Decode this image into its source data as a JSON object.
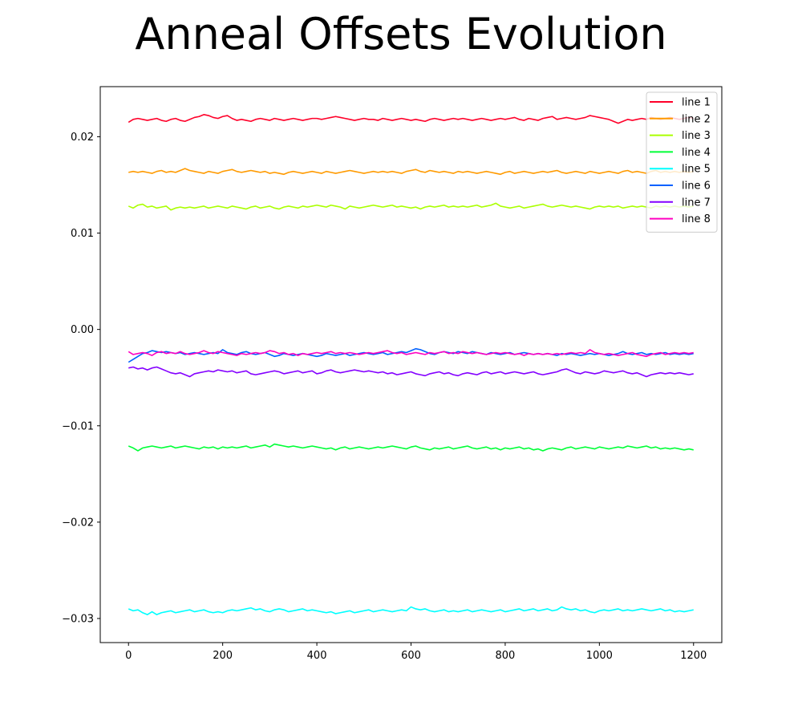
{
  "chart_data": {
    "type": "line",
    "title": "Anneal Offsets Evolution",
    "xlabel": "",
    "ylabel": "",
    "xlim": [
      -60,
      1260
    ],
    "ylim": [
      -0.0325,
      0.0252
    ],
    "x_ticks": [
      0,
      200,
      400,
      600,
      800,
      1000,
      1200
    ],
    "x_tick_labels": [
      "0",
      "200",
      "400",
      "600",
      "800",
      "1000",
      "1200"
    ],
    "y_ticks": [
      0.02,
      0.01,
      0.0,
      -0.01,
      -0.02,
      -0.03
    ],
    "y_tick_labels": [
      "0.02",
      "0.01",
      "0.00",
      "−0.01",
      "−0.02",
      "−0.03"
    ],
    "legend_position": "top-right",
    "grid": false,
    "x_range": [
      0,
      1200
    ],
    "point_step": 10,
    "series": [
      {
        "name": "line 1",
        "color": "#ff0029",
        "values": [
          0.0215,
          0.0218,
          0.0219,
          0.0218,
          0.0217,
          0.0218,
          0.0219,
          0.0217,
          0.0216,
          0.0218,
          0.0219,
          0.0217,
          0.0216,
          0.0218,
          0.022,
          0.0221,
          0.0223,
          0.0222,
          0.022,
          0.0219,
          0.0221,
          0.0222,
          0.0219,
          0.0217,
          0.0218,
          0.0217,
          0.0216,
          0.0218,
          0.0219,
          0.0218,
          0.0217,
          0.0219,
          0.0218,
          0.0217,
          0.0218,
          0.0219,
          0.0218,
          0.0217,
          0.0218,
          0.0219,
          0.0219,
          0.0218,
          0.0219,
          0.022,
          0.0221,
          0.022,
          0.0219,
          0.0218,
          0.0217,
          0.0218,
          0.0219,
          0.0218,
          0.0218,
          0.0217,
          0.0219,
          0.0218,
          0.0217,
          0.0218,
          0.0219,
          0.0218,
          0.0217,
          0.0218,
          0.0217,
          0.0216,
          0.0218,
          0.0219,
          0.0218,
          0.0217,
          0.0218,
          0.0219,
          0.0218,
          0.0219,
          0.0218,
          0.0217,
          0.0218,
          0.0219,
          0.0218,
          0.0217,
          0.0218,
          0.0219,
          0.0218,
          0.0219,
          0.022,
          0.0218,
          0.0217,
          0.0219,
          0.0218,
          0.0217,
          0.0219,
          0.022,
          0.0221,
          0.0218,
          0.0219,
          0.022,
          0.0219,
          0.0218,
          0.0219,
          0.022,
          0.0222,
          0.0221,
          0.022,
          0.0219,
          0.0218,
          0.0216,
          0.0214,
          0.0216,
          0.0218,
          0.0217,
          0.0218,
          0.0219,
          0.0218,
          0.022,
          0.0219,
          0.0218,
          0.0219,
          0.022,
          0.0219,
          0.0218,
          0.0219,
          0.022,
          0.0219
        ]
      },
      {
        "name": "line 2",
        "color": "#ff9a00",
        "values": [
          0.0163,
          0.0164,
          0.0163,
          0.0164,
          0.0163,
          0.0162,
          0.0164,
          0.0165,
          0.0163,
          0.0164,
          0.0163,
          0.0165,
          0.0167,
          0.0165,
          0.0164,
          0.0163,
          0.0162,
          0.0164,
          0.0163,
          0.0162,
          0.0164,
          0.0165,
          0.0166,
          0.0164,
          0.0163,
          0.0164,
          0.0165,
          0.0164,
          0.0163,
          0.0164,
          0.0162,
          0.0163,
          0.0162,
          0.0161,
          0.0163,
          0.0164,
          0.0163,
          0.0162,
          0.0163,
          0.0164,
          0.0163,
          0.0162,
          0.0164,
          0.0163,
          0.0162,
          0.0163,
          0.0164,
          0.0165,
          0.0164,
          0.0163,
          0.0162,
          0.0163,
          0.0164,
          0.0163,
          0.0164,
          0.0163,
          0.0164,
          0.0163,
          0.0162,
          0.0164,
          0.0165,
          0.0166,
          0.0164,
          0.0163,
          0.0165,
          0.0164,
          0.0163,
          0.0164,
          0.0163,
          0.0162,
          0.0164,
          0.0163,
          0.0164,
          0.0163,
          0.0162,
          0.0163,
          0.0164,
          0.0163,
          0.0162,
          0.0161,
          0.0163,
          0.0164,
          0.0162,
          0.0163,
          0.0164,
          0.0163,
          0.0162,
          0.0163,
          0.0164,
          0.0163,
          0.0164,
          0.0165,
          0.0163,
          0.0162,
          0.0163,
          0.0164,
          0.0163,
          0.0162,
          0.0164,
          0.0163,
          0.0162,
          0.0163,
          0.0164,
          0.0163,
          0.0162,
          0.0164,
          0.0165,
          0.0163,
          0.0164,
          0.0163,
          0.0162,
          0.0164,
          0.0165,
          0.0163,
          0.0164,
          0.0163,
          0.0164,
          0.0163,
          0.0164,
          0.0163,
          0.0164
        ]
      },
      {
        "name": "line 3",
        "color": "#aaff00",
        "values": [
          0.0128,
          0.0126,
          0.0129,
          0.013,
          0.0127,
          0.0128,
          0.0126,
          0.0127,
          0.0128,
          0.0124,
          0.0126,
          0.0127,
          0.0126,
          0.0127,
          0.0126,
          0.0127,
          0.0128,
          0.0126,
          0.0127,
          0.0128,
          0.0127,
          0.0126,
          0.0128,
          0.0127,
          0.0126,
          0.0125,
          0.0127,
          0.0128,
          0.0126,
          0.0127,
          0.0128,
          0.0126,
          0.0125,
          0.0127,
          0.0128,
          0.0127,
          0.0126,
          0.0128,
          0.0127,
          0.0128,
          0.0129,
          0.0128,
          0.0127,
          0.0129,
          0.0128,
          0.0127,
          0.0125,
          0.0128,
          0.0127,
          0.0126,
          0.0127,
          0.0128,
          0.0129,
          0.0128,
          0.0127,
          0.0128,
          0.0129,
          0.0127,
          0.0128,
          0.0127,
          0.0126,
          0.0127,
          0.0125,
          0.0127,
          0.0128,
          0.0127,
          0.0128,
          0.0129,
          0.0127,
          0.0128,
          0.0127,
          0.0128,
          0.0127,
          0.0128,
          0.0129,
          0.0127,
          0.0128,
          0.0129,
          0.0131,
          0.0128,
          0.0127,
          0.0126,
          0.0127,
          0.0128,
          0.0126,
          0.0127,
          0.0128,
          0.0129,
          0.013,
          0.0128,
          0.0127,
          0.0128,
          0.0129,
          0.0128,
          0.0127,
          0.0128,
          0.0127,
          0.0126,
          0.0125,
          0.0127,
          0.0128,
          0.0127,
          0.0128,
          0.0127,
          0.0128,
          0.0126,
          0.0127,
          0.0128,
          0.0127,
          0.0128,
          0.0127,
          0.0126,
          0.0128,
          0.0127,
          0.0128,
          0.0127,
          0.0128,
          0.0127,
          0.0128,
          0.0127,
          0.0128
        ]
      },
      {
        "name": "line 4",
        "color": "#00ff37",
        "values": [
          -0.0121,
          -0.0123,
          -0.0126,
          -0.0123,
          -0.0122,
          -0.0121,
          -0.0122,
          -0.0123,
          -0.0122,
          -0.0121,
          -0.0123,
          -0.0122,
          -0.0121,
          -0.0122,
          -0.0123,
          -0.0124,
          -0.0122,
          -0.0123,
          -0.0122,
          -0.0124,
          -0.0122,
          -0.0123,
          -0.0122,
          -0.0123,
          -0.0122,
          -0.0121,
          -0.0123,
          -0.0122,
          -0.0121,
          -0.012,
          -0.0122,
          -0.0119,
          -0.012,
          -0.0121,
          -0.0122,
          -0.0121,
          -0.0122,
          -0.0123,
          -0.0122,
          -0.0121,
          -0.0122,
          -0.0123,
          -0.0124,
          -0.0123,
          -0.0125,
          -0.0123,
          -0.0122,
          -0.0124,
          -0.0123,
          -0.0122,
          -0.0123,
          -0.0124,
          -0.0123,
          -0.0122,
          -0.0123,
          -0.0122,
          -0.0121,
          -0.0122,
          -0.0123,
          -0.0124,
          -0.0122,
          -0.0121,
          -0.0123,
          -0.0124,
          -0.0125,
          -0.0123,
          -0.0124,
          -0.0123,
          -0.0122,
          -0.0124,
          -0.0123,
          -0.0122,
          -0.0121,
          -0.0123,
          -0.0124,
          -0.0123,
          -0.0122,
          -0.0124,
          -0.0123,
          -0.0125,
          -0.0123,
          -0.0124,
          -0.0123,
          -0.0122,
          -0.0124,
          -0.0123,
          -0.0125,
          -0.0124,
          -0.0126,
          -0.0124,
          -0.0123,
          -0.0124,
          -0.0125,
          -0.0123,
          -0.0122,
          -0.0124,
          -0.0123,
          -0.0122,
          -0.0123,
          -0.0124,
          -0.0122,
          -0.0123,
          -0.0124,
          -0.0123,
          -0.0122,
          -0.0123,
          -0.0121,
          -0.0122,
          -0.0123,
          -0.0122,
          -0.0121,
          -0.0123,
          -0.0122,
          -0.0124,
          -0.0123,
          -0.0124,
          -0.0123,
          -0.0124,
          -0.0125,
          -0.0124,
          -0.0125
        ]
      },
      {
        "name": "line 5",
        "color": "#00ffff",
        "values": [
          -0.029,
          -0.0292,
          -0.0291,
          -0.0294,
          -0.0296,
          -0.0293,
          -0.0296,
          -0.0294,
          -0.0293,
          -0.0292,
          -0.0294,
          -0.0293,
          -0.0292,
          -0.0291,
          -0.0293,
          -0.0292,
          -0.0291,
          -0.0293,
          -0.0294,
          -0.0293,
          -0.0294,
          -0.0292,
          -0.0291,
          -0.0292,
          -0.0291,
          -0.029,
          -0.0289,
          -0.0291,
          -0.029,
          -0.0292,
          -0.0293,
          -0.0291,
          -0.029,
          -0.0291,
          -0.0293,
          -0.0292,
          -0.0291,
          -0.029,
          -0.0292,
          -0.0291,
          -0.0292,
          -0.0293,
          -0.0294,
          -0.0293,
          -0.0295,
          -0.0294,
          -0.0293,
          -0.0292,
          -0.0294,
          -0.0293,
          -0.0292,
          -0.0291,
          -0.0293,
          -0.0292,
          -0.0291,
          -0.0292,
          -0.0293,
          -0.0292,
          -0.0291,
          -0.0292,
          -0.0288,
          -0.029,
          -0.0291,
          -0.029,
          -0.0292,
          -0.0293,
          -0.0292,
          -0.0291,
          -0.0293,
          -0.0292,
          -0.0293,
          -0.0292,
          -0.0291,
          -0.0293,
          -0.0292,
          -0.0291,
          -0.0292,
          -0.0293,
          -0.0292,
          -0.0291,
          -0.0293,
          -0.0292,
          -0.0291,
          -0.029,
          -0.0292,
          -0.0291,
          -0.029,
          -0.0292,
          -0.0291,
          -0.029,
          -0.0292,
          -0.0291,
          -0.0288,
          -0.029,
          -0.0291,
          -0.029,
          -0.0292,
          -0.0291,
          -0.0293,
          -0.0294,
          -0.0292,
          -0.0291,
          -0.0292,
          -0.0291,
          -0.029,
          -0.0292,
          -0.0291,
          -0.0292,
          -0.0291,
          -0.029,
          -0.0291,
          -0.0292,
          -0.0291,
          -0.029,
          -0.0292,
          -0.0291,
          -0.0293,
          -0.0292,
          -0.0293,
          -0.0292,
          -0.0291
        ]
      },
      {
        "name": "line 6",
        "color": "#0061ff",
        "values": [
          -0.0034,
          -0.0031,
          -0.0028,
          -0.0025,
          -0.0024,
          -0.0022,
          -0.0023,
          -0.0024,
          -0.0023,
          -0.0024,
          -0.0025,
          -0.0024,
          -0.0026,
          -0.0025,
          -0.0024,
          -0.0025,
          -0.0026,
          -0.0025,
          -0.0024,
          -0.0025,
          -0.0021,
          -0.0024,
          -0.0025,
          -0.0026,
          -0.0024,
          -0.0023,
          -0.0025,
          -0.0026,
          -0.0025,
          -0.0024,
          -0.0026,
          -0.0028,
          -0.0027,
          -0.0025,
          -0.0026,
          -0.0027,
          -0.0026,
          -0.0025,
          -0.0026,
          -0.0027,
          -0.0028,
          -0.0027,
          -0.0025,
          -0.0026,
          -0.0027,
          -0.0026,
          -0.0025,
          -0.0027,
          -0.0026,
          -0.0025,
          -0.0024,
          -0.0025,
          -0.0026,
          -0.0025,
          -0.0024,
          -0.0026,
          -0.0025,
          -0.0024,
          -0.0023,
          -0.0024,
          -0.0022,
          -0.002,
          -0.0021,
          -0.0023,
          -0.0025,
          -0.0026,
          -0.0024,
          -0.0023,
          -0.0024,
          -0.0025,
          -0.0023,
          -0.0024,
          -0.0025,
          -0.0023,
          -0.0024,
          -0.0025,
          -0.0026,
          -0.0024,
          -0.0025,
          -0.0026,
          -0.0025,
          -0.0024,
          -0.0026,
          -0.0025,
          -0.0024,
          -0.0025,
          -0.0026,
          -0.0025,
          -0.0026,
          -0.0025,
          -0.0026,
          -0.0027,
          -0.0025,
          -0.0026,
          -0.0025,
          -0.0026,
          -0.0027,
          -0.0026,
          -0.0025,
          -0.0026,
          -0.0025,
          -0.0026,
          -0.0027,
          -0.0026,
          -0.0025,
          -0.0023,
          -0.0025,
          -0.0026,
          -0.0025,
          -0.0024,
          -0.0026,
          -0.0025,
          -0.0026,
          -0.0025,
          -0.0024,
          -0.0026,
          -0.0025,
          -0.0026,
          -0.0025,
          -0.0026,
          -0.0025
        ]
      },
      {
        "name": "line 7",
        "color": "#8400ff",
        "values": [
          -0.004,
          -0.0039,
          -0.0041,
          -0.004,
          -0.0042,
          -0.004,
          -0.0039,
          -0.0041,
          -0.0043,
          -0.0045,
          -0.0046,
          -0.0045,
          -0.0047,
          -0.0049,
          -0.0046,
          -0.0045,
          -0.0044,
          -0.0043,
          -0.0044,
          -0.0042,
          -0.0043,
          -0.0044,
          -0.0043,
          -0.0045,
          -0.0044,
          -0.0043,
          -0.0046,
          -0.0047,
          -0.0046,
          -0.0045,
          -0.0044,
          -0.0043,
          -0.0044,
          -0.0046,
          -0.0045,
          -0.0044,
          -0.0043,
          -0.0045,
          -0.0044,
          -0.0043,
          -0.0046,
          -0.0045,
          -0.0043,
          -0.0042,
          -0.0044,
          -0.0045,
          -0.0044,
          -0.0043,
          -0.0042,
          -0.0043,
          -0.0044,
          -0.0043,
          -0.0044,
          -0.0045,
          -0.0044,
          -0.0046,
          -0.0045,
          -0.0047,
          -0.0046,
          -0.0045,
          -0.0044,
          -0.0046,
          -0.0047,
          -0.0048,
          -0.0046,
          -0.0045,
          -0.0044,
          -0.0046,
          -0.0045,
          -0.0047,
          -0.0048,
          -0.0046,
          -0.0045,
          -0.0046,
          -0.0047,
          -0.0045,
          -0.0044,
          -0.0046,
          -0.0045,
          -0.0044,
          -0.0046,
          -0.0045,
          -0.0044,
          -0.0045,
          -0.0046,
          -0.0045,
          -0.0044,
          -0.0046,
          -0.0047,
          -0.0046,
          -0.0045,
          -0.0044,
          -0.0042,
          -0.0041,
          -0.0043,
          -0.0045,
          -0.0046,
          -0.0044,
          -0.0045,
          -0.0046,
          -0.0045,
          -0.0043,
          -0.0044,
          -0.0045,
          -0.0044,
          -0.0043,
          -0.0045,
          -0.0046,
          -0.0045,
          -0.0047,
          -0.0049,
          -0.0047,
          -0.0046,
          -0.0045,
          -0.0046,
          -0.0045,
          -0.0046,
          -0.0045,
          -0.0046,
          -0.0047,
          -0.0046
        ]
      },
      {
        "name": "line 8",
        "color": "#ff00c1",
        "values": [
          -0.0023,
          -0.0026,
          -0.0025,
          -0.0024,
          -0.0025,
          -0.0027,
          -0.0024,
          -0.0023,
          -0.0025,
          -0.0024,
          -0.0025,
          -0.0023,
          -0.0025,
          -0.0026,
          -0.0025,
          -0.0024,
          -0.0022,
          -0.0024,
          -0.0025,
          -0.0023,
          -0.0024,
          -0.0025,
          -0.0026,
          -0.0027,
          -0.0025,
          -0.0026,
          -0.0025,
          -0.0024,
          -0.0025,
          -0.0024,
          -0.0022,
          -0.0023,
          -0.0025,
          -0.0024,
          -0.0026,
          -0.0025,
          -0.0027,
          -0.0025,
          -0.0026,
          -0.0025,
          -0.0024,
          -0.0025,
          -0.0024,
          -0.0023,
          -0.0025,
          -0.0024,
          -0.0025,
          -0.0024,
          -0.0025,
          -0.0026,
          -0.0025,
          -0.0024,
          -0.0025,
          -0.0024,
          -0.0023,
          -0.0022,
          -0.0024,
          -0.0025,
          -0.0024,
          -0.0026,
          -0.0025,
          -0.0024,
          -0.0025,
          -0.0026,
          -0.0024,
          -0.0025,
          -0.0024,
          -0.0023,
          -0.0025,
          -0.0024,
          -0.0025,
          -0.0023,
          -0.0024,
          -0.0025,
          -0.0024,
          -0.0025,
          -0.0026,
          -0.0025,
          -0.0024,
          -0.0025,
          -0.0024,
          -0.0025,
          -0.0026,
          -0.0025,
          -0.0027,
          -0.0025,
          -0.0026,
          -0.0025,
          -0.0026,
          -0.0025,
          -0.0026,
          -0.0025,
          -0.0026,
          -0.0025,
          -0.0024,
          -0.0025,
          -0.0024,
          -0.0025,
          -0.0021,
          -0.0024,
          -0.0025,
          -0.0026,
          -0.0025,
          -0.0026,
          -0.0027,
          -0.0026,
          -0.0025,
          -0.0024,
          -0.0026,
          -0.0027,
          -0.0028,
          -0.0026,
          -0.0025,
          -0.0024,
          -0.0026,
          -0.0025,
          -0.0024,
          -0.0025,
          -0.0024,
          -0.0025,
          -0.0024
        ]
      }
    ]
  }
}
